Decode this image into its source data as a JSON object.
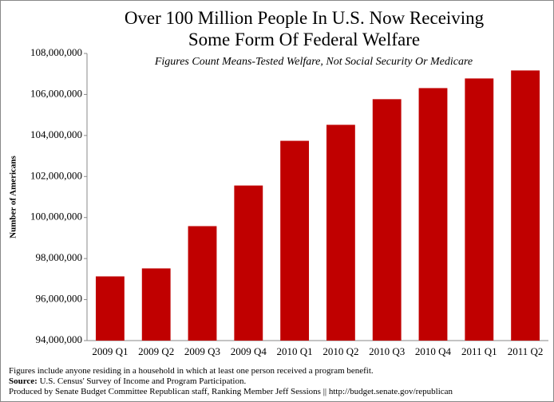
{
  "chart_data": {
    "type": "bar",
    "title": "Over 100 Million People In U.S. Now Receiving Some Form Of Federal Welfare",
    "subtitle": "Figures Count Means-Tested Welfare, Not Social Security Or Medicare",
    "y_label": "Number of Americans",
    "categories": [
      "2009 Q1",
      "2009 Q2",
      "2009 Q3",
      "2009 Q4",
      "2010 Q1",
      "2010 Q2",
      "2010 Q3",
      "2010 Q4",
      "2011 Q1",
      "2011 Q2"
    ],
    "values": [
      97130000,
      97520000,
      99580000,
      101560000,
      103740000,
      104520000,
      105770000,
      106310000,
      106780000,
      107170000
    ],
    "color": "#c00000",
    "ylim": [
      94000000,
      108000000
    ],
    "yticks": [
      {
        "value": 94000000,
        "label": "94,000,000"
      },
      {
        "value": 96000000,
        "label": "96,000,000"
      },
      {
        "value": 98000000,
        "label": "98,000,000"
      },
      {
        "value": 100000000,
        "label": "100,000,000"
      },
      {
        "value": 102000000,
        "label": "102,000,000"
      },
      {
        "value": 104000000,
        "label": "104,000,000"
      },
      {
        "value": 106000000,
        "label": "106,000,000"
      },
      {
        "value": 108000000,
        "label": "108,000,000"
      }
    ],
    "grid": false,
    "notes": [
      "Figures include anyone residing in a household in which at least one person received a program benefit.",
      "Source:",
      "U.S. Census' Survey of Income and Program Participation.",
      "Produced by Senate Budget Committee Republican staff, Ranking Member Jeff Sessions || http://budget.senate.gov/republican"
    ]
  }
}
